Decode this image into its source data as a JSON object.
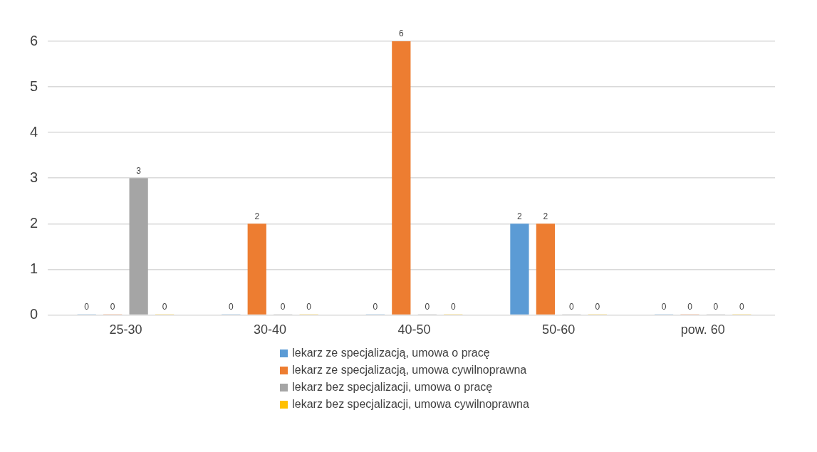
{
  "chart_data": {
    "type": "bar",
    "categories": [
      "25-30",
      "30-40",
      "40-50",
      "50-60",
      "pow. 60"
    ],
    "series": [
      {
        "name": "lekarz ze specjalizacją, umowa o pracę",
        "color": "#5b9bd5",
        "values": [
          0,
          0,
          0,
          2,
          0
        ]
      },
      {
        "name": "lekarz ze specjalizacją, umowa cywilnoprawna",
        "color": "#ed7d31",
        "values": [
          0,
          2,
          6,
          2,
          0
        ]
      },
      {
        "name": "lekarz bez specjalizacji, umowa o pracę",
        "color": "#a5a5a5",
        "values": [
          3,
          0,
          0,
          0,
          0
        ]
      },
      {
        "name": "lekarz bez specjalizacji, umowa cywilnoprawna",
        "color": "#ffc000",
        "values": [
          0,
          0,
          0,
          0,
          0
        ]
      }
    ],
    "ylim": [
      0,
      6
    ],
    "yticks": [
      0,
      1,
      2,
      3,
      4,
      5,
      6
    ],
    "grid": "y",
    "legend": "bottom",
    "data_labels": true
  }
}
